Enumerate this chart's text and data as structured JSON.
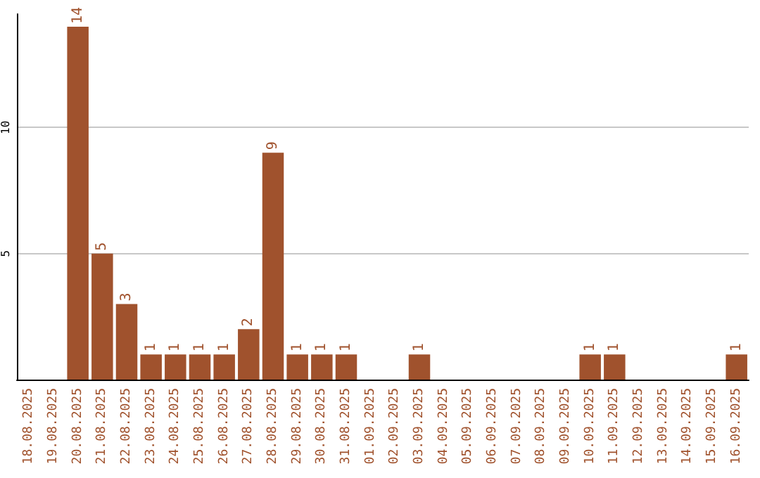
{
  "chart_data": {
    "type": "bar",
    "categories": [
      "18.08.2025",
      "19.08.2025",
      "20.08.2025",
      "21.08.2025",
      "22.08.2025",
      "23.08.2025",
      "24.08.2025",
      "25.08.2025",
      "26.08.2025",
      "27.08.2025",
      "28.08.2025",
      "29.08.2025",
      "30.08.2025",
      "31.08.2025",
      "01.09.2025",
      "02.09.2025",
      "03.09.2025",
      "04.09.2025",
      "05.09.2025",
      "06.09.2025",
      "07.09.2025",
      "08.09.2025",
      "09.09.2025",
      "10.09.2025",
      "11.09.2025",
      "12.09.2025",
      "13.09.2025",
      "14.09.2025",
      "15.09.2025",
      "16.09.2025"
    ],
    "values": [
      0,
      0,
      14,
      5,
      3,
      1,
      1,
      1,
      1,
      2,
      9,
      1,
      1,
      1,
      0,
      0,
      1,
      0,
      0,
      0,
      0,
      0,
      0,
      1,
      1,
      0,
      0,
      0,
      0,
      1
    ],
    "value_labels": [
      null,
      null,
      "14",
      "5",
      "3",
      "1",
      "1",
      "1",
      "1",
      "2",
      "9",
      "1",
      "1",
      "1",
      null,
      null,
      "1",
      null,
      null,
      null,
      null,
      null,
      null,
      "1",
      "1",
      null,
      null,
      null,
      null,
      "1"
    ],
    "color": "#a0522d",
    "ylim": [
      0,
      14.5
    ],
    "yticks": [
      5,
      10
    ],
    "grid": "y"
  }
}
